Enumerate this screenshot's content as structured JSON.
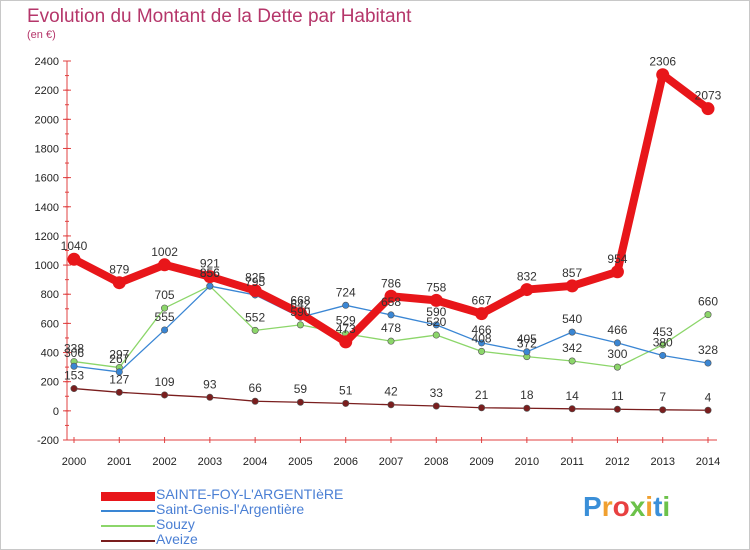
{
  "title": "Evolution du Montant de la Dette par Habitant",
  "subtitle": "(en €)",
  "logo": {
    "text": "Proxiti",
    "colors": [
      "#3a8fd8",
      "#f0a030",
      "#e84040",
      "#6cc24a",
      "#f0a030",
      "#3a8fd8",
      "#6cc24a"
    ]
  },
  "chart_data": {
    "type": "line",
    "title": "Evolution du Montant de la Dette par Habitant",
    "ylabel": "(en €)",
    "xlabel": "",
    "ylim": [
      -200,
      2400
    ],
    "yticks": [
      -200,
      0,
      200,
      400,
      600,
      800,
      1000,
      1200,
      1400,
      1600,
      1800,
      2000,
      2200,
      2400
    ],
    "grid": false,
    "categories": [
      "2000",
      "2001",
      "2002",
      "2003",
      "2004",
      "2005",
      "2006",
      "2007",
      "2008",
      "2009",
      "2010",
      "2011",
      "2012",
      "2013",
      "2014"
    ],
    "series": [
      {
        "name": "SAINTE-FOY-L'ARGENTIèRE",
        "color": "#e8161a",
        "values": [
          1040,
          879,
          1002,
          921,
          825,
          668,
          473,
          786,
          758,
          667,
          832,
          857,
          954,
          2306,
          2073
        ]
      },
      {
        "name": "Saint-Genis-l'Argentière",
        "color": "#3a86d4",
        "values": [
          306,
          267,
          555,
          856,
          795,
          642,
          724,
          658,
          590,
          466,
          405,
          540,
          466,
          380,
          328
        ]
      },
      {
        "name": "Souzy",
        "color": "#8cd66a",
        "values": [
          338,
          297,
          705,
          856,
          552,
          590,
          529,
          478,
          520,
          408,
          372,
          342,
          300,
          453,
          660
        ]
      },
      {
        "name": "Aveize",
        "color": "#7a1e1e",
        "values": [
          153,
          127,
          109,
          93,
          66,
          59,
          51,
          42,
          33,
          21,
          18,
          14,
          11,
          7,
          4
        ]
      }
    ],
    "labels": [
      [
        "1040",
        "879",
        "1002",
        "921",
        "825",
        "668",
        "473",
        "786",
        "758",
        "667",
        "832",
        "857",
        "954",
        "2306",
        "2073"
      ],
      [
        "306",
        "267",
        "555",
        "856",
        "795",
        "642",
        "724",
        "658",
        "590",
        "466",
        "405",
        "540",
        "466",
        "380",
        "328"
      ],
      [
        "338",
        "297",
        "705",
        "856",
        "552",
        "590",
        "529",
        "478",
        "520",
        "408",
        "372",
        "342",
        "300",
        "453",
        "660"
      ],
      [
        "153",
        "127",
        "109",
        "93",
        "66",
        "59",
        "51",
        "42",
        "33",
        "21",
        "18",
        "14",
        "11",
        "7",
        "4"
      ]
    ]
  }
}
